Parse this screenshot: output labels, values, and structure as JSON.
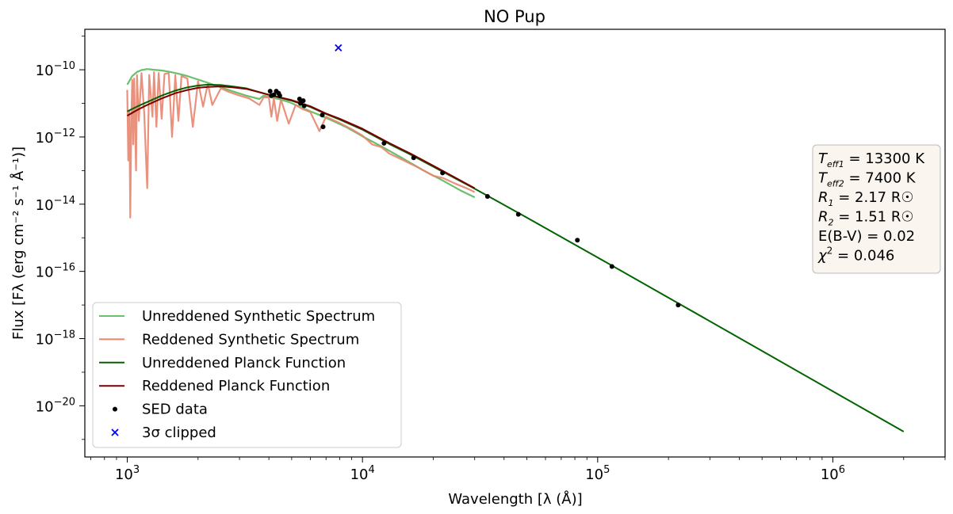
{
  "chart_data": {
    "type": "line",
    "title": "NO Pup",
    "xlabel": "Wavelength [λ (Å)]",
    "ylabel": "Flux [Fλ (erg cm⁻² s⁻¹ Å⁻¹)]",
    "x_scale": "log",
    "y_scale": "log",
    "xlim": [
      660,
      3000000
    ],
    "ylim": [
      3e-22,
      1.6e-09
    ],
    "x_ticks": [
      {
        "value": 1000,
        "base": "10",
        "exp": "3"
      },
      {
        "value": 10000,
        "base": "10",
        "exp": "4"
      },
      {
        "value": 100000,
        "base": "10",
        "exp": "5"
      },
      {
        "value": 1000000,
        "base": "10",
        "exp": "6"
      }
    ],
    "y_ticks": [
      {
        "value": 1e-10,
        "base": "10",
        "exp": "−10"
      },
      {
        "value": 1e-12,
        "base": "10",
        "exp": "−12"
      },
      {
        "value": 1e-14,
        "base": "10",
        "exp": "−14"
      },
      {
        "value": 1e-16,
        "base": "10",
        "exp": "−16"
      },
      {
        "value": 1e-18,
        "base": "10",
        "exp": "−18"
      },
      {
        "value": 1e-20,
        "base": "10",
        "exp": "−20"
      }
    ],
    "series": [
      {
        "name": "Unreddened Synthetic Spectrum",
        "kind": "line",
        "color": "#6cbf6c",
        "x": [
          1000,
          1050,
          1100,
          1150,
          1216,
          1300,
          1400,
          1500,
          1650,
          1800,
          2000,
          2200,
          2500,
          2800,
          3200,
          3647,
          3800,
          4100,
          4400,
          4861,
          5500,
          6000,
          6563,
          7500,
          8500,
          10000,
          12000,
          15000,
          18000,
          22000,
          26000,
          30000
        ],
        "y": [
          3.6e-11,
          6.5e-11,
          8.6e-11,
          9.8e-11,
          1.05e-10,
          1e-10,
          9.5e-11,
          8.8e-11,
          7.6e-11,
          6.5e-11,
          5.1e-11,
          4.1e-11,
          3e-11,
          2.3e-11,
          1.7e-11,
          1.35e-11,
          1.7e-11,
          1.5e-11,
          1.35e-11,
          1.1e-11,
          7.6e-12,
          5.8e-12,
          4.5e-12,
          3e-12,
          2e-12,
          1.05e-12,
          5.3e-13,
          2.2e-13,
          1.05e-13,
          5e-14,
          2.6e-14,
          1.6e-14
        ]
      },
      {
        "name": "Reddened Synthetic Spectrum",
        "kind": "line",
        "color": "#e8856f",
        "x": [
          1000,
          1010,
          1020,
          1030,
          1040,
          1050,
          1060,
          1070,
          1090,
          1100,
          1120,
          1150,
          1180,
          1216,
          1240,
          1280,
          1300,
          1330,
          1360,
          1400,
          1440,
          1500,
          1550,
          1600,
          1650,
          1700,
          1800,
          1900,
          2000,
          2100,
          2200,
          2300,
          2500,
          2700,
          3000,
          3300,
          3647,
          3800,
          4000,
          4101,
          4200,
          4340,
          4500,
          4861,
          5200,
          5500,
          6000,
          6563,
          7000,
          8000,
          9000,
          10000,
          11000,
          12000,
          13000,
          15000,
          17000,
          20000,
          22000,
          25000,
          28000,
          30000
        ],
        "y": [
          2.5e-11,
          2e-13,
          6e-12,
          4e-15,
          3e-12,
          5e-11,
          6e-13,
          5.5e-11,
          1e-13,
          7e-11,
          3e-12,
          8e-11,
          5e-12,
          3e-14,
          7e-11,
          4e-12,
          8.5e-11,
          2e-12,
          8e-11,
          3.5e-12,
          7.5e-11,
          8e-11,
          1e-12,
          7e-11,
          3e-12,
          6.5e-11,
          5.5e-11,
          2e-12,
          4.5e-11,
          8e-12,
          3.8e-11,
          9e-12,
          2.8e-11,
          2.2e-11,
          1.7e-11,
          1.4e-11,
          9e-12,
          1.5e-11,
          1.5e-11,
          4e-12,
          1.4e-11,
          3e-12,
          1.3e-11,
          2.5e-12,
          9e-12,
          7e-12,
          5.5e-12,
          1.5e-12,
          4e-12,
          2.6e-12,
          1.7e-12,
          1.1e-12,
          6e-13,
          5e-13,
          3.2e-13,
          2e-13,
          1.3e-13,
          7e-14,
          6e-14,
          4e-14,
          2.9e-14,
          2.3e-14
        ]
      },
      {
        "name": "Unreddened Planck Function",
        "kind": "line",
        "color": "#006400",
        "x": [
          1000,
          1100,
          1200,
          1400,
          1600,
          1800,
          2000,
          2200,
          2500,
          2800,
          3200,
          3600,
          4000,
          5000,
          6000,
          7000,
          8000,
          10000,
          13000,
          16000,
          20000,
          30000,
          50000,
          100000,
          200000,
          500000,
          1000000,
          2000000
        ],
        "y": [
          5.8e-12,
          8e-12,
          1.05e-11,
          1.7e-11,
          2.4e-11,
          3e-11,
          3.4e-11,
          3.6e-11,
          3.5e-11,
          3.2e-11,
          2.8e-11,
          2.2e-11,
          1.8e-11,
          1.2e-11,
          7.8e-12,
          4.8e-12,
          3.3e-12,
          1.65e-12,
          6.2e-13,
          3e-13,
          1.3e-13,
          2.9e-14,
          4e-15,
          2.6e-16,
          1.65e-17,
          4.3e-19,
          2.7e-20,
          1.7e-21
        ]
      },
      {
        "name": "Reddened Planck Function",
        "kind": "line",
        "color": "#7a0000",
        "x": [
          1000,
          1100,
          1200,
          1400,
          1600,
          1800,
          2000,
          2200,
          2500,
          2800,
          3200,
          3600,
          4000,
          5000,
          6000,
          7000,
          8000,
          10000,
          13000,
          16000,
          20000,
          30000
        ],
        "y": [
          4.3e-12,
          6.3e-12,
          8.6e-12,
          1.4e-11,
          2e-11,
          2.5e-11,
          2.9e-11,
          3.1e-11,
          3.2e-11,
          3e-11,
          2.7e-11,
          2.2e-11,
          1.8e-11,
          1.25e-11,
          8.2e-12,
          5e-12,
          3.5e-12,
          1.75e-12,
          6.6e-13,
          3.2e-13,
          1.4e-13,
          3e-14
        ]
      },
      {
        "name": "SED data",
        "kind": "scatter",
        "marker": "dot",
        "color": "#000000",
        "x": [
          4050,
          4100,
          4200,
          4300,
          4400,
          4450,
          5400,
          5450,
          5600,
          5650,
          6750,
          6800,
          12350,
          16500,
          21900,
          34000,
          46000,
          82000,
          115000,
          220000
        ],
        "y": [
          2.3e-11,
          1.7e-11,
          1.8e-11,
          2.3e-11,
          2e-11,
          1.7e-11,
          1.35e-11,
          1e-11,
          1.2e-11,
          8.5e-12,
          4.5e-12,
          2e-12,
          6.5e-13,
          2.4e-13,
          8.5e-14,
          1.7e-14,
          5e-15,
          8.5e-16,
          1.4e-16,
          1e-17
        ]
      },
      {
        "name": "3σ clipped",
        "kind": "scatter",
        "marker": "x",
        "color": "#0000ff",
        "x": [
          7900
        ],
        "y": [
          4.5e-10
        ]
      }
    ],
    "legend": {
      "position": "lower-left",
      "entries": [
        {
          "label": "Unreddened Synthetic Spectrum",
          "color": "#6cbf6c",
          "marker": "line"
        },
        {
          "label": "Reddened Synthetic Spectrum",
          "color": "#e8856f",
          "marker": "line"
        },
        {
          "label": "Unreddened Planck Function",
          "color": "#006400",
          "marker": "line"
        },
        {
          "label": "Reddened Planck Function",
          "color": "#7a0000",
          "marker": "line"
        },
        {
          "label": "SED data",
          "color": "#000000",
          "marker": "dot"
        },
        {
          "label": "3σ clipped",
          "color": "#0000ff",
          "marker": "x"
        }
      ]
    },
    "annotation": {
      "position": "right",
      "lines": [
        {
          "sym": "T",
          "sub": "eff1",
          "rest": " = 13300 K"
        },
        {
          "sym": "T",
          "sub": "eff2",
          "rest": " = 7400 K"
        },
        {
          "sym": "R",
          "sub": "1",
          "rest": " = 2.17 R☉"
        },
        {
          "sym": "R",
          "sub": "2",
          "rest": " = 1.51 R☉"
        },
        {
          "sym": "",
          "sub": "",
          "rest": "E(B-V) = 0.02"
        },
        {
          "sym": "χ",
          "sup": "2",
          "rest": " = 0.046"
        }
      ]
    }
  }
}
